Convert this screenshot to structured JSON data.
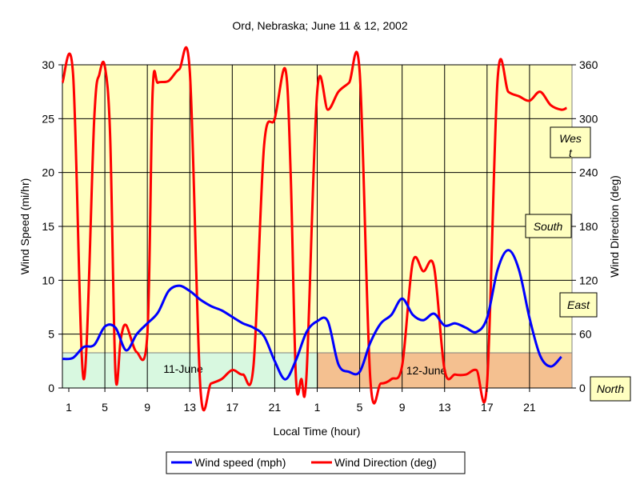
{
  "chart_data": {
    "type": "line",
    "title": "Ord, Nebraska; June 11 & 12, 2002",
    "xlabel": "Local Time (hour)",
    "ylabel_left": "Wind Speed (mi/hr)",
    "ylabel_right": "Wind Direction (deg)",
    "ylim_left": [
      0,
      30
    ],
    "ylim_right": [
      0,
      360
    ],
    "xlim": [
      1,
      49
    ],
    "x_ticks": [
      "1",
      "5",
      "9",
      "13",
      "17",
      "21",
      "1",
      "5",
      "9",
      "13",
      "17",
      "21"
    ],
    "y_ticks_left": [
      "0",
      "5",
      "10",
      "15",
      "20",
      "25",
      "30"
    ],
    "y_ticks_right": [
      "0",
      "60",
      "120",
      "180",
      "240",
      "300",
      "360"
    ],
    "grid": true,
    "legend": "bottom",
    "colors": {
      "plot_bg": "#FFFFC0",
      "wind_speed": "#0000FF",
      "wind_direction": "#FF0000",
      "day1_band": "#D8F8E0",
      "day2_band": "#F4C090",
      "label_box_bg": "#FFFFC0"
    },
    "series": [
      {
        "name": "Wind speed (mph)",
        "axis": "left",
        "x": [
          1,
          2,
          3,
          4,
          5,
          6,
          7,
          8,
          9,
          10,
          11,
          12,
          13,
          14,
          15,
          16,
          17,
          18,
          19,
          20,
          21,
          22,
          23,
          24,
          25,
          26,
          27,
          28,
          29,
          30,
          31,
          32,
          33,
          34,
          35,
          36,
          37,
          38,
          39,
          40,
          41,
          42,
          43,
          44,
          45,
          46,
          47,
          48
        ],
        "values": [
          2.7,
          2.8,
          3.8,
          4.0,
          5.7,
          5.6,
          3.5,
          5.0,
          6.0,
          7.0,
          9.0,
          9.5,
          9.0,
          8.2,
          7.6,
          7.2,
          6.6,
          6.0,
          5.6,
          4.8,
          2.5,
          0.8,
          2.6,
          5.2,
          6.2,
          6.2,
          2.2,
          1.5,
          1.5,
          4.2,
          6.0,
          6.8,
          8.3,
          6.8,
          6.3,
          6.9,
          5.8,
          6.0,
          5.6,
          5.2,
          6.5,
          11.0,
          12.8,
          11.0,
          6.5,
          3.0,
          2.0,
          2.9
        ]
      },
      {
        "name": "Wind Direction (deg)",
        "axis": "right",
        "x": [
          1,
          2,
          3,
          4,
          4.5,
          5,
          5.5,
          6,
          6.5,
          7,
          8,
          9,
          9.5,
          10,
          11,
          12,
          13,
          14,
          15,
          16,
          17,
          18,
          19,
          20,
          21,
          22,
          22.5,
          23,
          23.5,
          24,
          25,
          26,
          27,
          28,
          29,
          30,
          31,
          32,
          33,
          34,
          35,
          36,
          37,
          38,
          39,
          40,
          41,
          42,
          43,
          44,
          45,
          46,
          47,
          48,
          48.5
        ],
        "values": [
          340,
          350,
          10,
          300,
          350,
          358,
          280,
          15,
          55,
          70,
          40,
          60,
          330,
          340,
          342,
          355,
          352,
          0,
          5,
          10,
          20,
          15,
          25,
          270,
          300,
          355,
          240,
          10,
          10,
          15,
          330,
          310,
          330,
          340,
          352,
          10,
          5,
          10,
          25,
          140,
          130,
          135,
          20,
          15,
          15,
          20,
          5,
          345,
          330,
          325,
          320,
          330,
          315,
          310,
          312
        ]
      }
    ],
    "annotations": {
      "day_labels": [
        "11-June",
        "12-June"
      ],
      "direction_labels": [
        "North",
        "East",
        "South",
        "Wes",
        "t"
      ]
    }
  }
}
